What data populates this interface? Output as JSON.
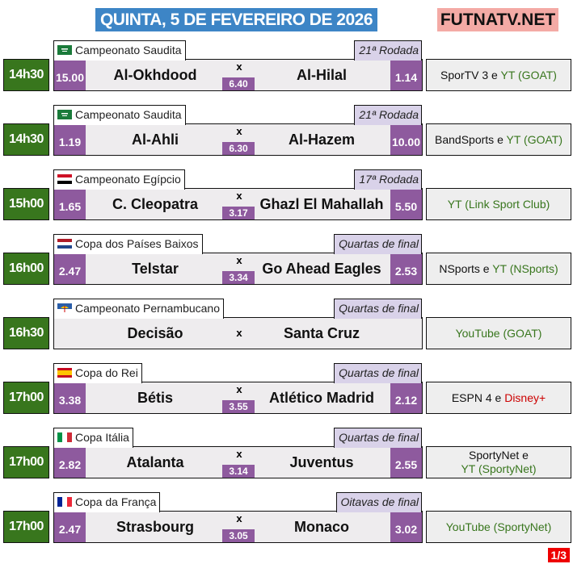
{
  "header": {
    "title": "QUINTA, 5 DE FEVEREIRO DE 2026",
    "brand": "FUTNATV.NET"
  },
  "colors": {
    "title_bg": "#3d85c6",
    "brand_bg": "#f4aaa5",
    "time_bg": "#38761d",
    "odds_bg": "#8e5a9e",
    "round_bg": "#d9d2e9",
    "stream_green": "#38761d",
    "disney_red": "#cc0000"
  },
  "matches": [
    {
      "time": "14h30",
      "competition": "Campeonato Saudita",
      "flag": "saudi-arabia-flag",
      "round": "21ª Rodada",
      "home": "Al-Okhdood",
      "away": "Al-Hilal",
      "odd_home": "15.00",
      "odd_draw": "6.40",
      "odd_away": "1.14",
      "vs": "x",
      "channels": [
        {
          "text": "SporTV 3 e ",
          "color": "#111111"
        },
        {
          "text": "YT (GOAT)",
          "color": "#38761d"
        }
      ]
    },
    {
      "time": "14h30",
      "competition": "Campeonato Saudita",
      "flag": "saudi-arabia-flag",
      "round": "21ª Rodada",
      "home": "Al-Ahli",
      "away": "Al-Hazem",
      "odd_home": "1.19",
      "odd_draw": "6.30",
      "odd_away": "10.00",
      "vs": "x",
      "channels": [
        {
          "text": "BandSports e ",
          "color": "#111111"
        },
        {
          "text": "YT (GOAT)",
          "color": "#38761d"
        }
      ]
    },
    {
      "time": "15h00",
      "competition": "Campeonato Egípcio",
      "flag": "egypt-flag",
      "round": "17ª Rodada",
      "home": "C. Cleopatra",
      "away": "Ghazl El Mahallah",
      "odd_home": "1.65",
      "odd_draw": "3.17",
      "odd_away": "5.50",
      "vs": "x",
      "channels": [
        {
          "text": "YT (Link Sport Club)",
          "color": "#38761d"
        }
      ]
    },
    {
      "time": "16h00",
      "competition": "Copa dos Países Baixos",
      "flag": "netherlands-flag",
      "round": "Quartas de final",
      "home": "Telstar",
      "away": "Go Ahead Eagles",
      "odd_home": "2.47",
      "odd_draw": "3.34",
      "odd_away": "2.53",
      "vs": "x",
      "channels": [
        {
          "text": "NSports e ",
          "color": "#111111"
        },
        {
          "text": "YT (NSports)",
          "color": "#38761d"
        }
      ]
    },
    {
      "time": "16h30",
      "competition": "Campeonato Pernambucano",
      "flag": "pernambuco-flag",
      "round": "Quartas de final",
      "home": "Decisão",
      "away": "Santa Cruz",
      "odd_home": null,
      "odd_draw": null,
      "odd_away": null,
      "vs": "x",
      "channels": [
        {
          "text": "YouTube (GOAT)",
          "color": "#38761d"
        }
      ]
    },
    {
      "time": "17h00",
      "competition": "Copa do Rei",
      "flag": "spain-flag",
      "round": "Quartas de final",
      "home": "Bétis",
      "away": "Atlético Madrid",
      "odd_home": "3.38",
      "odd_draw": "3.55",
      "odd_away": "2.12",
      "vs": "x",
      "channels": [
        {
          "text": "ESPN 4 e ",
          "color": "#111111"
        },
        {
          "text": "Disney+",
          "color": "#cc0000"
        }
      ]
    },
    {
      "time": "17h00",
      "competition": "Copa Itália",
      "flag": "italy-flag",
      "round": "Quartas de final",
      "home": "Atalanta",
      "away": "Juventus",
      "odd_home": "2.82",
      "odd_draw": "3.14",
      "odd_away": "2.55",
      "vs": "x",
      "channels": [
        {
          "text": "SportyNet e",
          "color": "#111111",
          "br": true
        },
        {
          "text": "YT (SportyNet)",
          "color": "#38761d"
        }
      ]
    },
    {
      "time": "17h00",
      "competition": "Copa da França",
      "flag": "france-flag",
      "round": "Oitavas de final",
      "home": "Strasbourg",
      "away": "Monaco",
      "odd_home": "2.47",
      "odd_draw": "3.05",
      "odd_away": "3.02",
      "vs": "x",
      "channels": [
        {
          "text": "YouTube (SportyNet)",
          "color": "#38761d"
        }
      ]
    }
  ],
  "pagination": "1/3"
}
